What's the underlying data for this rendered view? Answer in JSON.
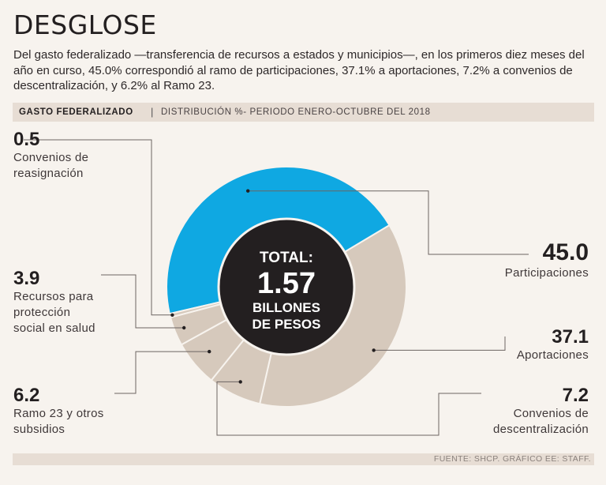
{
  "header": {
    "title": "DESGLOSE",
    "intro": "Del gasto federalizado —transferencia de recursos a estados y municipios—, en los primeros diez meses del año en curso, 45.0% correspondió al ramo de participaciones, 37.1% a aportaciones, 7.2% a convenios de descentralización, y 6.2% al Ramo 23."
  },
  "bar": {
    "bold": "GASTO FEDERALIZADO",
    "separator": "|",
    "subtitle": "DISTRIBUCIÓN %- PERIODO ENERO-OCTUBRE DEL 2018"
  },
  "footer": {
    "source": "FUENTE: SHCP. GRÁFICO EE: STAFF."
  },
  "center": {
    "line1": "TOTAL:",
    "line2": "1.57",
    "line3": "BILLONES",
    "line4": "DE PESOS"
  },
  "colors": {
    "highlight": "#0fa8e2",
    "base": "#d6c9bc",
    "divider": "#f7f3ee",
    "center": "#231f20"
  },
  "chart_data": {
    "type": "pie",
    "title": "GASTO FEDERALIZADO",
    "subtitle": "DISTRIBUCIÓN %- PERIODO ENERO-OCTUBRE DEL 2018",
    "total_label": "TOTAL: 1.57 BILLONES DE PESOS",
    "unit": "%",
    "slices": [
      {
        "value": 45.0,
        "value_label": "45.0",
        "name": "Participaciones",
        "highlight": true
      },
      {
        "value": 37.1,
        "value_label": "37.1",
        "name": "Aportaciones",
        "highlight": false
      },
      {
        "value": 7.2,
        "value_label": "7.2",
        "name": "Convenios de descentralización",
        "highlight": false
      },
      {
        "value": 6.2,
        "value_label": "6.2",
        "name": "Ramo 23 y otros subsidios",
        "highlight": false
      },
      {
        "value": 3.9,
        "value_label": "3.9",
        "name": "Recursos para protección social en salud",
        "highlight": false
      },
      {
        "value": 0.5,
        "value_label": "0.5",
        "name": "Convenios de reasignación",
        "highlight": false
      }
    ]
  }
}
